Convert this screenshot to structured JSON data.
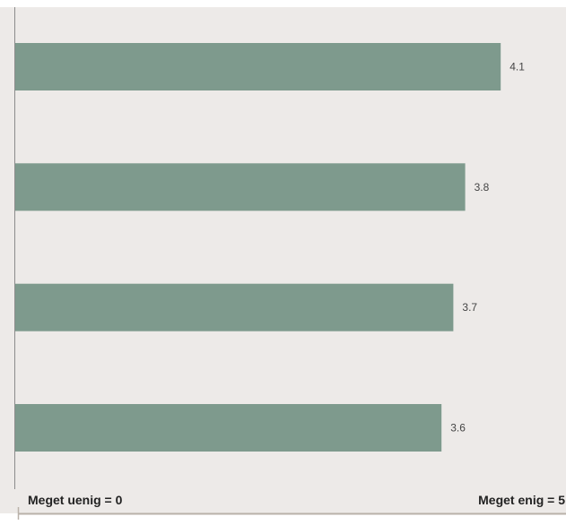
{
  "chart_data": {
    "type": "bar",
    "orientation": "horizontal",
    "values": [
      4.1,
      3.8,
      3.7,
      3.6
    ],
    "value_labels": [
      "4.1",
      "3.8",
      "3.7",
      "3.6"
    ],
    "xlim": [
      0,
      5
    ],
    "scale_min_label": "Meget uenig = 0",
    "scale_max_label": "Meget enig = 5",
    "grid": false,
    "colors": {
      "bar": "#7e9a8d",
      "plot_background": "#edeae8",
      "axis": "#8c8c8c",
      "scale_line": "#b9b1a9"
    }
  }
}
